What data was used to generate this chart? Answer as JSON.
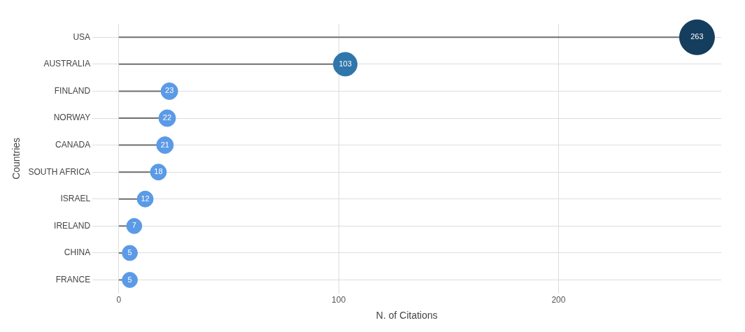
{
  "chart_data": {
    "type": "lollipop",
    "orientation": "horizontal",
    "xlabel": "N. of Citations",
    "ylabel": "Countries",
    "categories": [
      "USA",
      "AUSTRALIA",
      "FINLAND",
      "NORWAY",
      "CANADA",
      "SOUTH AFRICA",
      "ISRAEL",
      "IRELAND",
      "CHINA",
      "FRANCE"
    ],
    "values": [
      263,
      103,
      23,
      22,
      21,
      18,
      12,
      7,
      5,
      5
    ],
    "sizes": [
      1,
      0.46,
      0.23,
      0.23,
      0.23,
      0.21,
      0.21,
      0.19,
      0.19,
      0.19
    ],
    "colors": [
      "#153d5e",
      "#2f76aa",
      "#5b9ae6",
      "#5b9ae6",
      "#5b9ae6",
      "#5b9ae6",
      "#5b9ae6",
      "#5b9ae6",
      "#5b9ae6",
      "#5b9ae6"
    ],
    "xlim": [
      -12,
      274
    ],
    "xticks": [
      0,
      100,
      200
    ],
    "grid": true,
    "legend": false,
    "data_labels": true
  }
}
